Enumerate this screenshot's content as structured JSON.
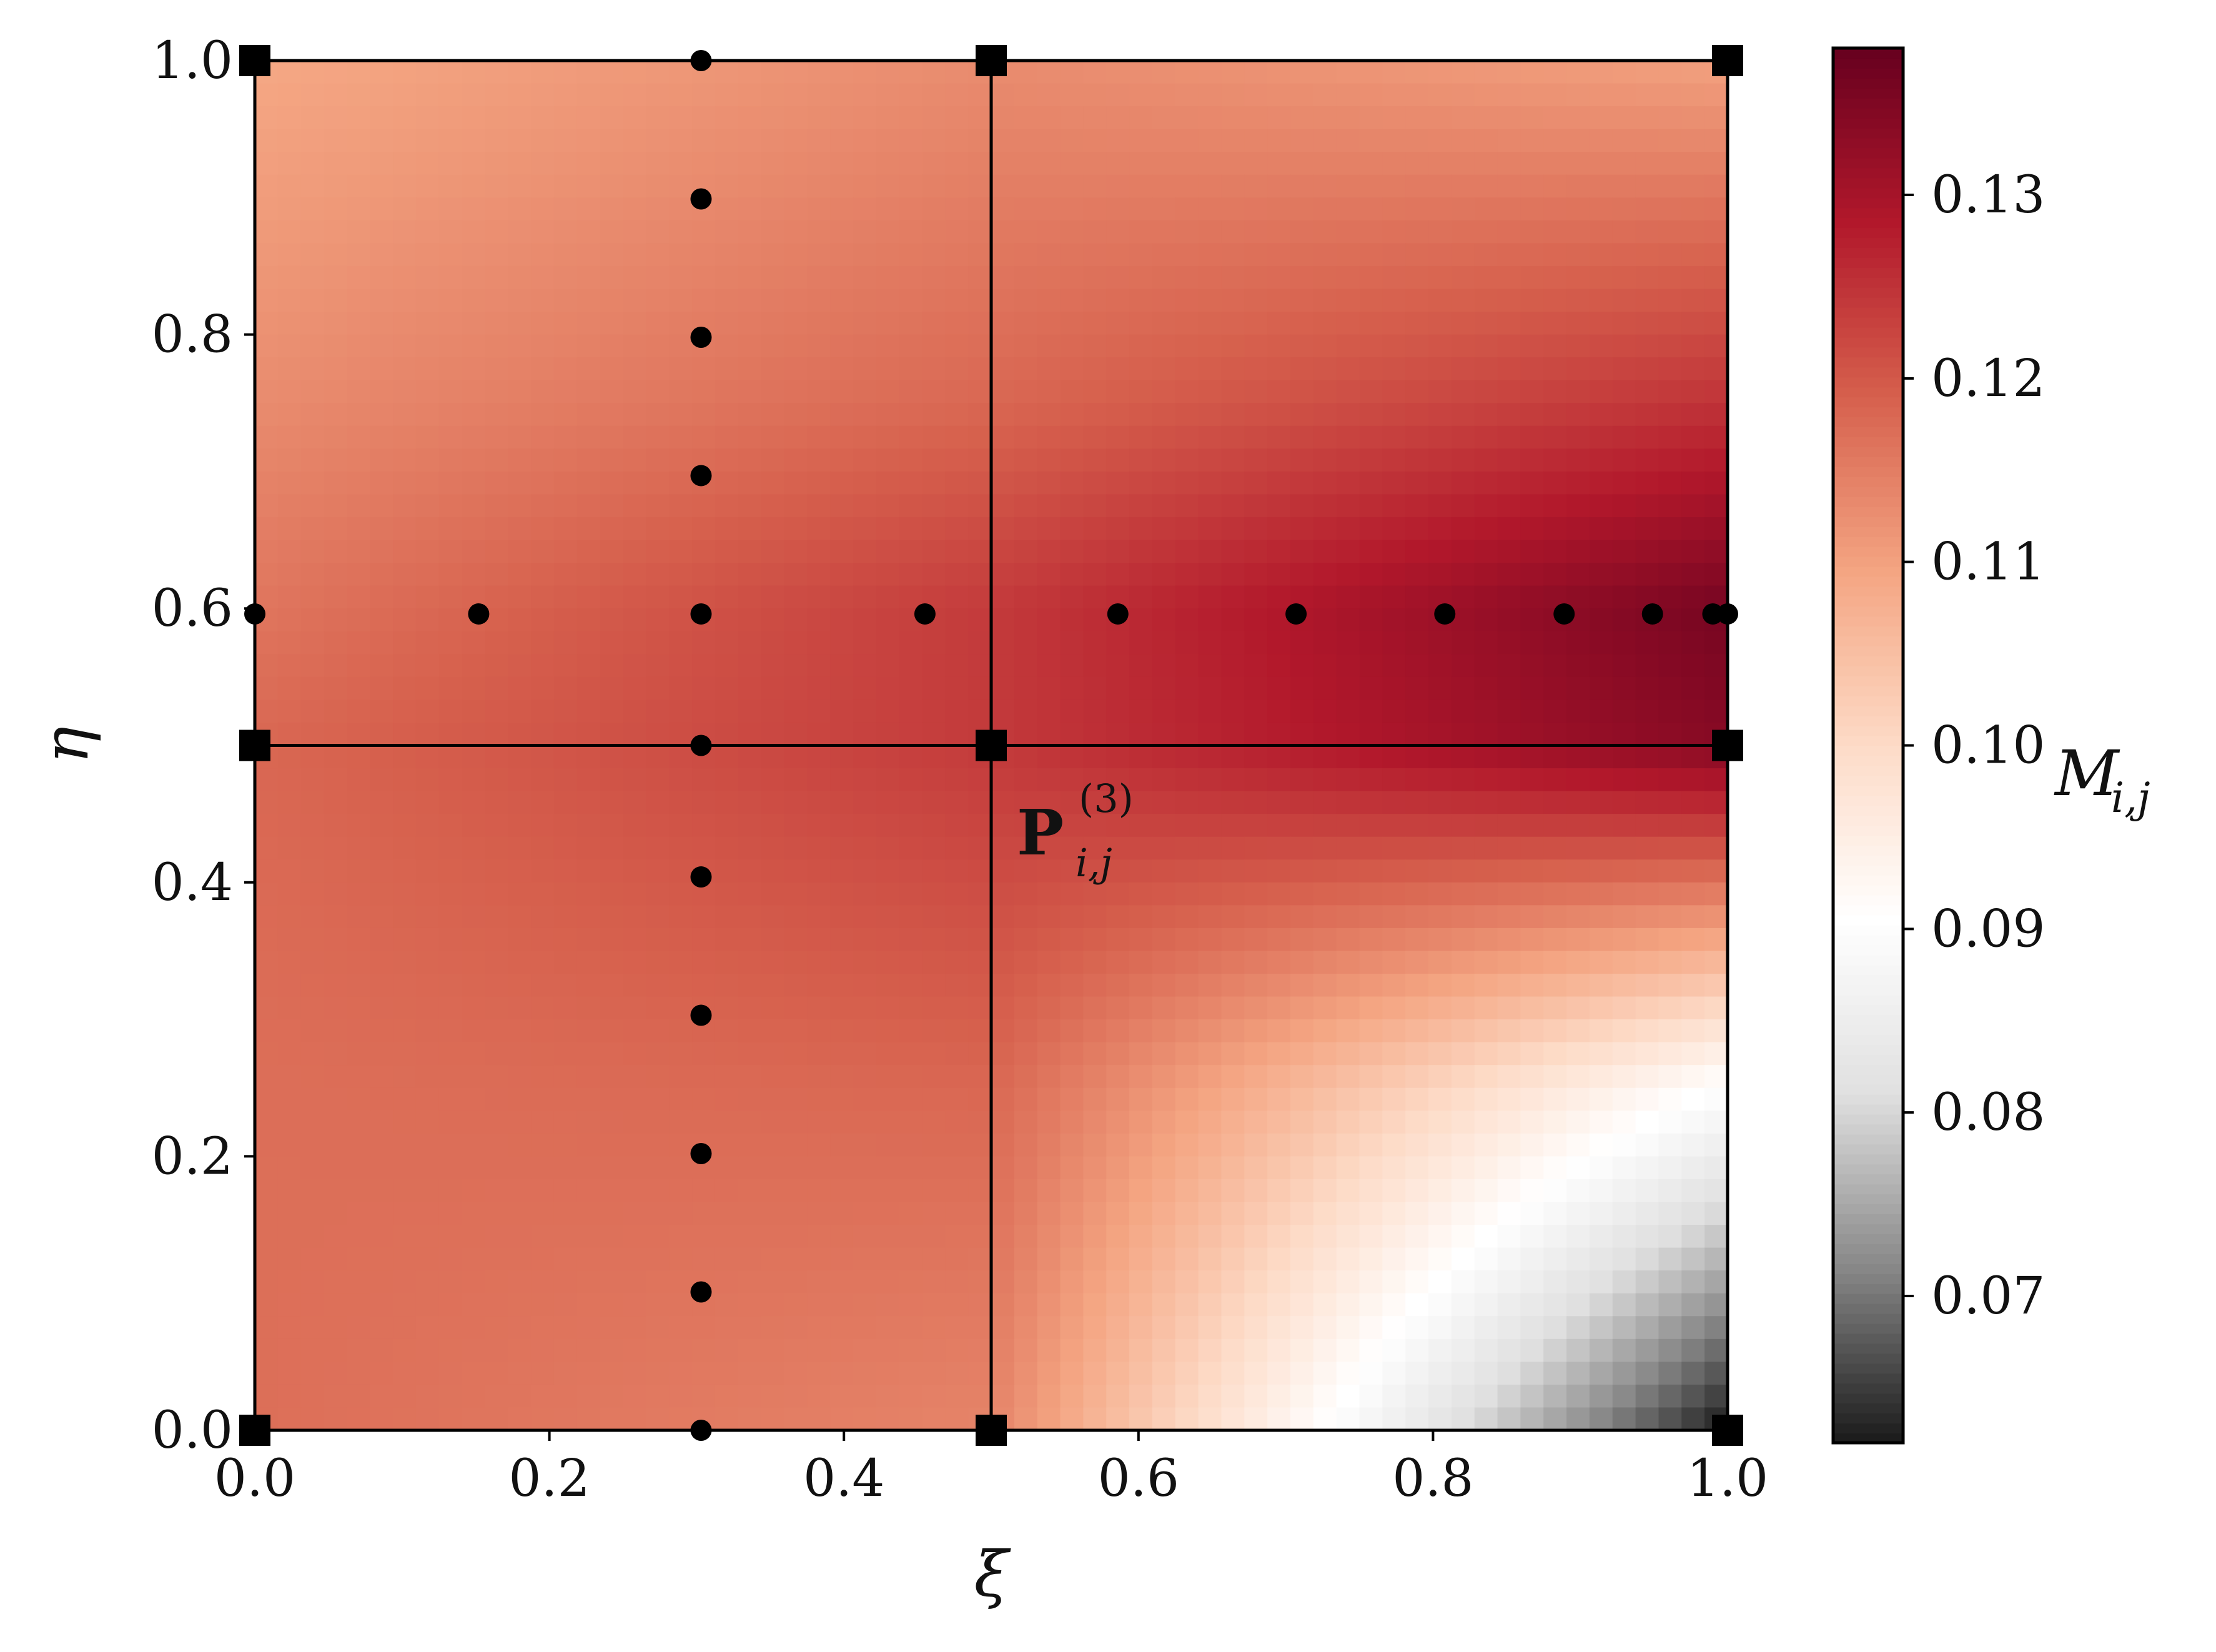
{
  "chart_data": {
    "type": "heatmap",
    "xlabel": "ξ",
    "ylabel": "η",
    "xlim": [
      0.0,
      1.0
    ],
    "ylim": [
      0.0,
      1.0
    ],
    "xticks": [
      "0.0",
      "0.2",
      "0.4",
      "0.6",
      "0.8",
      "1.0"
    ],
    "yticks": [
      "0.0",
      "0.2",
      "0.4",
      "0.6",
      "0.8",
      "1.0"
    ],
    "grid": false,
    "colorbar": {
      "label_main": "M",
      "label_sub": "i,j",
      "min": 0.062,
      "max": 0.138,
      "ticks": [
        "0.07",
        "0.08",
        "0.09",
        "0.10",
        "0.11",
        "0.12",
        "0.13"
      ],
      "colormap": "RdGy (reversed)",
      "colors": [
        "#1a1a1a",
        "#878787",
        "#e0e0e0",
        "#ffffff",
        "#fddbc7",
        "#f4a582",
        "#d6604d",
        "#b2182b",
        "#67001f"
      ]
    },
    "element_boundaries_xi": [
      0.0,
      0.5,
      1.0
    ],
    "element_boundaries_eta": [
      0.0,
      0.5,
      1.0
    ],
    "control_points": [
      {
        "xi": 0.0,
        "eta": 0.0
      },
      {
        "xi": 0.5,
        "eta": 0.0
      },
      {
        "xi": 1.0,
        "eta": 0.0
      },
      {
        "xi": 0.0,
        "eta": 0.5
      },
      {
        "xi": 0.5,
        "eta": 0.5
      },
      {
        "xi": 1.0,
        "eta": 0.5
      },
      {
        "xi": 0.0,
        "eta": 1.0
      },
      {
        "xi": 0.5,
        "eta": 1.0
      },
      {
        "xi": 1.0,
        "eta": 1.0
      }
    ],
    "sample_points": [
      {
        "xi": 0.303,
        "eta": 0.0
      },
      {
        "xi": 0.303,
        "eta": 0.101
      },
      {
        "xi": 0.303,
        "eta": 0.202
      },
      {
        "xi": 0.303,
        "eta": 0.303
      },
      {
        "xi": 0.303,
        "eta": 0.404
      },
      {
        "xi": 0.303,
        "eta": 0.5
      },
      {
        "xi": 0.303,
        "eta": 0.596
      },
      {
        "xi": 0.303,
        "eta": 0.697
      },
      {
        "xi": 0.303,
        "eta": 0.798
      },
      {
        "xi": 0.303,
        "eta": 0.899
      },
      {
        "xi": 0.303,
        "eta": 1.0
      },
      {
        "xi": 0.0,
        "eta": 0.596
      },
      {
        "xi": 0.152,
        "eta": 0.596
      },
      {
        "xi": 0.455,
        "eta": 0.596
      },
      {
        "xi": 0.586,
        "eta": 0.596
      },
      {
        "xi": 0.707,
        "eta": 0.596
      },
      {
        "xi": 0.808,
        "eta": 0.596
      },
      {
        "xi": 0.889,
        "eta": 0.596
      },
      {
        "xi": 0.949,
        "eta": 0.596
      },
      {
        "xi": 0.99,
        "eta": 0.596
      },
      {
        "xi": 1.0,
        "eta": 0.596
      }
    ],
    "field_samples": {
      "xi": [
        0.0,
        0.5,
        1.0
      ],
      "eta": [
        0.0,
        0.25,
        0.5,
        0.6,
        0.75,
        1.0
      ],
      "values": [
        [
          0.117,
          0.114,
          0.062
        ],
        [
          0.117,
          0.118,
          0.09
        ],
        [
          0.118,
          0.124,
          0.134
        ],
        [
          0.116,
          0.124,
          0.136
        ],
        [
          0.113,
          0.118,
          0.125
        ],
        [
          0.109,
          0.113,
          0.11
        ]
      ]
    },
    "annotation": {
      "main": "P",
      "sub": "i,j",
      "sup": "(3)",
      "xi": 0.5,
      "eta": 0.5
    }
  }
}
